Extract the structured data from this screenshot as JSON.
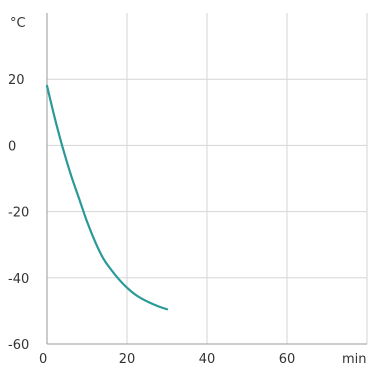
{
  "chart_data": {
    "type": "line",
    "ylabel": "°C",
    "xlabel": "min",
    "xlim": [
      0,
      80
    ],
    "ylim": [
      -60,
      40
    ],
    "x_ticks": [
      0,
      20,
      40,
      60
    ],
    "y_ticks": [
      -60,
      -40,
      -20,
      0,
      20
    ],
    "grid": true,
    "series": [
      {
        "color": "#2a9a99",
        "x": [
          0,
          2,
          4,
          6,
          8,
          10,
          12,
          14,
          16,
          18,
          20,
          22,
          24,
          26,
          28,
          30
        ],
        "y": [
          18,
          8,
          -1,
          -9,
          -16,
          -23,
          -29,
          -34,
          -37.5,
          -40.5,
          -43,
          -45,
          -46.5,
          -47.7,
          -48.7,
          -49.5
        ]
      }
    ]
  }
}
